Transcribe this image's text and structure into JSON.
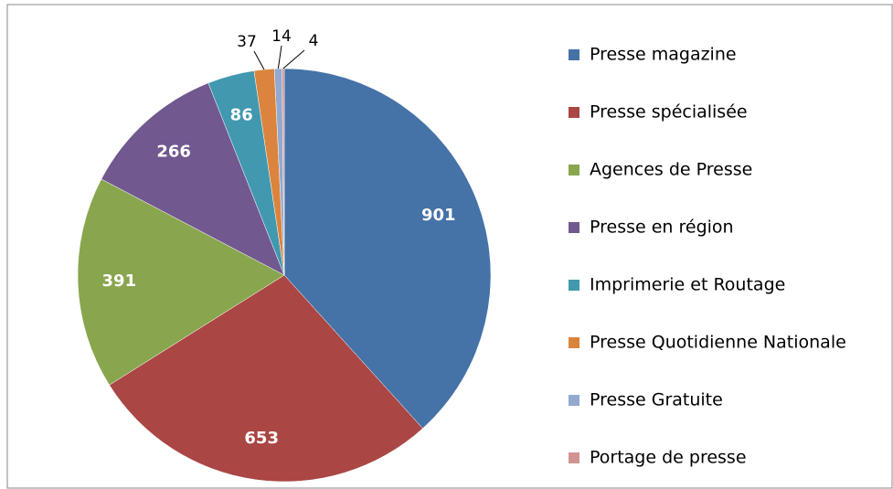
{
  "chart_data": {
    "type": "pie",
    "categories": [
      "Presse magazine",
      "Presse spécialisée",
      "Agences de Presse",
      "Presse en région",
      "Imprimerie et Routage",
      "Presse Quotidienne Nationale",
      "Presse Gratuite",
      "Portage de presse"
    ],
    "values": [
      901,
      653,
      391,
      266,
      86,
      37,
      14,
      4
    ],
    "colors": [
      "#4572A7",
      "#AA4643",
      "#89A54E",
      "#71588F",
      "#4198AF",
      "#DB843D",
      "#93A9CF",
      "#D19392"
    ],
    "legend": "right"
  }
}
